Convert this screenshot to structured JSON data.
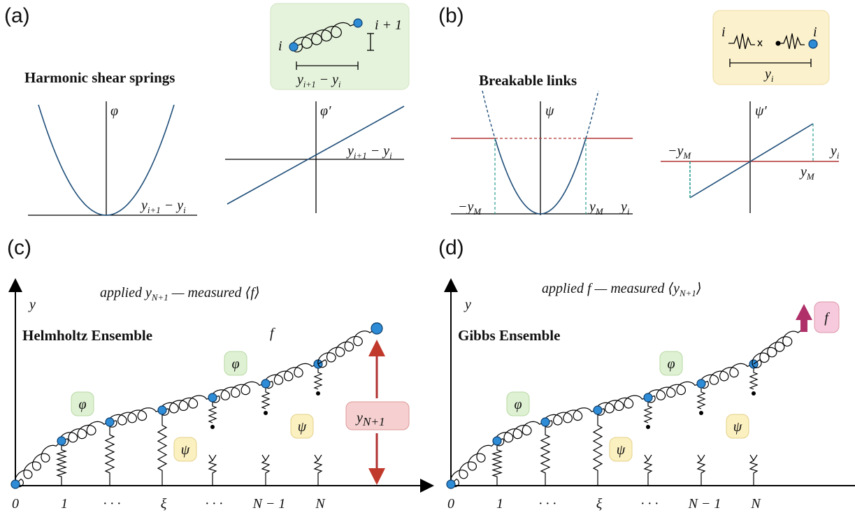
{
  "panels": {
    "a": {
      "label": "(a)",
      "title": "Harmonic shear springs",
      "inset_i": "i",
      "inset_i1": "i + 1",
      "inset_len": [
        {
          "t": "y"
        },
        {
          "sub": "i+1"
        },
        {
          "t": " − y"
        },
        {
          "sub": "i"
        }
      ],
      "plot1_y": "φ",
      "plot1_x": [
        {
          "t": "y"
        },
        {
          "sub": "i+1"
        },
        {
          "t": " − y"
        },
        {
          "sub": "i"
        }
      ],
      "plot2_y": "φ′",
      "plot2_x": [
        {
          "t": "y"
        },
        {
          "sub": "i+1"
        },
        {
          "t": " − y"
        },
        {
          "sub": "i"
        }
      ]
    },
    "b": {
      "label": "(b)",
      "title": "Breakable links",
      "inset_left": "i",
      "inset_right": "i",
      "inset_len": [
        {
          "t": "y"
        },
        {
          "sub": "i"
        }
      ],
      "plot1_y": "ψ",
      "plot1_neg": [
        {
          "t": "−y"
        },
        {
          "sub": "M"
        }
      ],
      "plot1_pos": [
        {
          "t": "y"
        },
        {
          "sub": "M"
        }
      ],
      "plot1_x": [
        {
          "t": "y"
        },
        {
          "sub": "i"
        }
      ],
      "plot2_y": "ψ′",
      "plot2_neg": [
        {
          "t": "−y"
        },
        {
          "sub": "M"
        }
      ],
      "plot2_pos": [
        {
          "t": "y"
        },
        {
          "sub": "M"
        }
      ],
      "plot2_x": [
        {
          "t": "y"
        },
        {
          "sub": "i"
        }
      ]
    },
    "c": {
      "label": "(c)",
      "caption": [
        {
          "t": "applied "
        },
        {
          "t": "y"
        },
        {
          "sub": "N+1"
        },
        {
          "t": " — measured ⟨f⟩"
        }
      ],
      "ensemble": "Helmholtz Ensemble",
      "force": "f",
      "axis_y": "y",
      "end_disp": [
        {
          "t": "y"
        },
        {
          "sub": "N+1"
        }
      ],
      "badges": [
        "φ",
        "φ",
        "ψ",
        "ψ"
      ],
      "ticks": [
        "0",
        "1",
        "· · ·",
        "ξ",
        "· · ·",
        "N − 1",
        "N"
      ]
    },
    "d": {
      "label": "(d)",
      "caption": [
        {
          "t": "applied f — measured ⟨y"
        },
        {
          "sub": "N+1"
        },
        {
          "t": "⟩"
        }
      ],
      "ensemble": "Gibbs Ensemble",
      "force": "f",
      "axis_y": "y",
      "badges": [
        "φ",
        "φ",
        "ψ",
        "ψ"
      ],
      "ticks": [
        "0",
        "1",
        "· · ·",
        "ξ",
        "· · ·",
        "N − 1",
        "N"
      ]
    }
  }
}
